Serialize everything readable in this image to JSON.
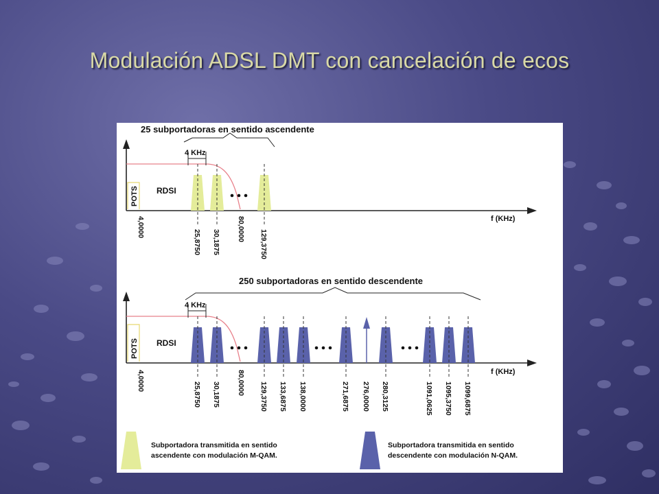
{
  "slide": {
    "title": "Modulación ADSL DMT con cancelación de ecos"
  },
  "colors": {
    "upstream": "#e4ec9a",
    "downstream": "#5a62aa",
    "mask": "#e8808a"
  },
  "upstream_diagram": {
    "heading": "25 subportadoras en sentido ascendente",
    "width_label": "4 KHz",
    "pots_label": "POTS",
    "rdsi_label": "RDSI",
    "axis_label": "f (KHz)",
    "ticks": [
      "4,0000",
      "25,8750",
      "30,1875",
      "80,0000",
      "129,3750"
    ]
  },
  "downstream_diagram": {
    "heading": "250 subportadoras en sentido descendente",
    "width_label": "4 KHz",
    "pots_label": "POTS",
    "rdsi_label": "RDSI",
    "axis_label": "f (KHz)",
    "ticks": [
      "4,0000",
      "25,8750",
      "30,1875",
      "80,0000",
      "129,3750",
      "133,6875",
      "138,0000",
      "271,6875",
      "276,0000",
      "280,3125",
      "1091,0625",
      "1095,3750",
      "1099,6875"
    ]
  },
  "legend": {
    "upstream": {
      "line1": "Subportadora transmitida en sentido",
      "line2": "ascendente con modulación M-QAM."
    },
    "downstream": {
      "line1": "Subportadora transmitida en sentido",
      "line2": "descendente con modulación N-QAM."
    }
  }
}
